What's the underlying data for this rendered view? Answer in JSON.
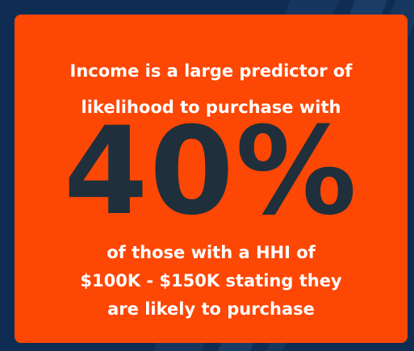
{
  "card": {
    "intro_lines": [
      "Income is a large predictor of",
      "likelihood to purchase with"
    ],
    "stat": "40%",
    "detail_lines": [
      "of those with a HHI of",
      "$100K - $150K stating they",
      "are likely to purchase"
    ]
  }
}
